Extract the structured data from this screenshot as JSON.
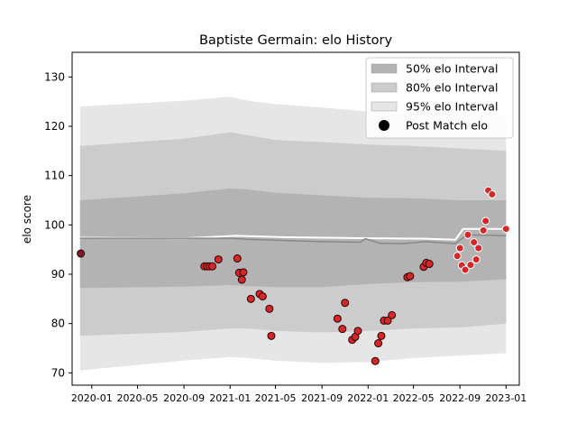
{
  "chart_data": {
    "type": "line",
    "title": "Baptiste Germain: elo History",
    "xlabel": "",
    "ylabel": "elo score",
    "xlim": [
      "2019-11-10",
      "2023-02-05"
    ],
    "ylim": [
      67.5,
      135
    ],
    "x_ticks": [
      "2020-01",
      "2020-05",
      "2020-09",
      "2021-01",
      "2021-05",
      "2021-09",
      "2022-01",
      "2022-05",
      "2022-09",
      "2023-01"
    ],
    "y_ticks": [
      70,
      80,
      90,
      100,
      110,
      120,
      130
    ],
    "grid": false,
    "legend_position": "top-right",
    "legend": [
      {
        "label": "50% elo Interval",
        "kind": "patch",
        "color": "#b3b3b3"
      },
      {
        "label": "80% elo Interval",
        "kind": "patch",
        "color": "#cccccc"
      },
      {
        "label": "95% elo Interval",
        "kind": "patch",
        "color": "#e6e6e6"
      },
      {
        "label": "Post Match elo",
        "kind": "marker",
        "color": "#000000"
      }
    ],
    "colors": {
      "band_50": "#b3b3b3",
      "band_80": "#cccccc",
      "band_95": "#e6e6e6",
      "median_line": "#888888",
      "mean_line": "#ffffff",
      "point_fill": "#d62728",
      "point_edge": "#2b0000",
      "future_point_edge": "#ffffff"
    },
    "bands": [
      {
        "date": "2019-12-01",
        "lo95": 70.5,
        "lo80": 77.5,
        "lo50": 87.2,
        "hi50": 105.0,
        "hi80": 116.0,
        "hi95": 124.0
      },
      {
        "date": "2020-09-01",
        "lo95": 72.5,
        "lo80": 78.3,
        "lo50": 87.5,
        "hi50": 106.4,
        "hi80": 117.5,
        "hi95": 125.2
      },
      {
        "date": "2021-01-01",
        "lo95": 73.2,
        "lo80": 79.0,
        "lo50": 87.8,
        "hi50": 107.4,
        "hi80": 118.8,
        "hi95": 126.0
      },
      {
        "date": "2021-02-15",
        "lo95": 73.0,
        "lo80": 79.0,
        "lo50": 87.6,
        "hi50": 107.2,
        "hi80": 118.2,
        "hi95": 125.2
      },
      {
        "date": "2021-05-01",
        "lo95": 72.5,
        "lo80": 78.5,
        "lo50": 87.4,
        "hi50": 106.5,
        "hi80": 117.2,
        "hi95": 124.5
      },
      {
        "date": "2021-09-01",
        "lo95": 72.0,
        "lo80": 78.2,
        "lo50": 87.4,
        "hi50": 106.0,
        "hi80": 116.8,
        "hi95": 123.8
      },
      {
        "date": "2022-01-01",
        "lo95": 72.2,
        "lo80": 78.5,
        "lo50": 88.0,
        "hi50": 105.5,
        "hi80": 116.3,
        "hi95": 123.0
      },
      {
        "date": "2022-05-01",
        "lo95": 73.0,
        "lo80": 79.0,
        "lo50": 88.4,
        "hi50": 105.4,
        "hi80": 116.0,
        "hi95": 122.4
      },
      {
        "date": "2022-09-01",
        "lo95": 73.5,
        "lo80": 79.2,
        "lo50": 88.5,
        "hi50": 105.0,
        "hi80": 115.5,
        "hi95": 122.0
      },
      {
        "date": "2023-01-01",
        "lo95": 74.0,
        "lo80": 80.0,
        "lo50": 89.0,
        "hi50": 105.0,
        "hi80": 115.0,
        "hi95": 122.0
      }
    ],
    "median_line": [
      {
        "date": "2019-12-01",
        "value": 97.3
      },
      {
        "date": "2021-01-01",
        "value": 97.3
      },
      {
        "date": "2021-02-15",
        "value": 97.1
      },
      {
        "date": "2021-09-01",
        "value": 96.6
      },
      {
        "date": "2021-12-10",
        "value": 96.5
      },
      {
        "date": "2021-12-25",
        "value": 97.2
      },
      {
        "date": "2022-02-01",
        "value": 96.3
      },
      {
        "date": "2022-04-01",
        "value": 96.2
      },
      {
        "date": "2022-06-01",
        "value": 96.6
      },
      {
        "date": "2022-08-20",
        "value": 96.2
      },
      {
        "date": "2022-09-20",
        "value": 98.0
      },
      {
        "date": "2023-01-01",
        "value": 97.8
      }
    ],
    "mean_line": [
      {
        "date": "2019-12-01",
        "value": 97.4
      },
      {
        "date": "2020-09-01",
        "value": 97.3
      },
      {
        "date": "2021-01-15",
        "value": 97.8
      },
      {
        "date": "2021-06-01",
        "value": 97.5
      },
      {
        "date": "2022-01-01",
        "value": 97.3
      },
      {
        "date": "2022-06-01",
        "value": 97.2
      },
      {
        "date": "2022-08-20",
        "value": 97.0
      },
      {
        "date": "2022-09-10",
        "value": 99.2
      },
      {
        "date": "2023-01-01",
        "value": 99.2
      }
    ],
    "series": [
      {
        "name": "Post Match elo",
        "points": [
          {
            "date": "2019-12-03",
            "value": 94.2
          },
          {
            "date": "2020-10-25",
            "value": 91.6
          },
          {
            "date": "2020-11-01",
            "value": 91.6
          },
          {
            "date": "2020-11-08",
            "value": 91.6
          },
          {
            "date": "2020-11-15",
            "value": 91.6
          },
          {
            "date": "2020-12-01",
            "value": 93.0
          },
          {
            "date": "2021-01-20",
            "value": 93.2
          },
          {
            "date": "2021-01-25",
            "value": 90.3
          },
          {
            "date": "2021-02-01",
            "value": 88.9
          },
          {
            "date": "2021-02-05",
            "value": 90.4
          },
          {
            "date": "2021-02-25",
            "value": 85.0
          },
          {
            "date": "2021-03-20",
            "value": 86.0
          },
          {
            "date": "2021-03-28",
            "value": 85.5
          },
          {
            "date": "2021-04-15",
            "value": 83.0
          },
          {
            "date": "2021-04-20",
            "value": 77.5
          },
          {
            "date": "2021-10-12",
            "value": 81.0
          },
          {
            "date": "2021-10-25",
            "value": 78.9
          },
          {
            "date": "2021-11-01",
            "value": 84.2
          },
          {
            "date": "2021-11-20",
            "value": 76.7
          },
          {
            "date": "2021-11-28",
            "value": 77.3
          },
          {
            "date": "2021-12-05",
            "value": 78.5
          },
          {
            "date": "2022-01-20",
            "value": 72.4
          },
          {
            "date": "2022-01-28",
            "value": 76.0
          },
          {
            "date": "2022-02-05",
            "value": 77.5
          },
          {
            "date": "2022-02-12",
            "value": 80.6
          },
          {
            "date": "2022-02-22",
            "value": 80.6
          },
          {
            "date": "2022-03-05",
            "value": 81.7
          },
          {
            "date": "2022-04-15",
            "value": 89.4
          },
          {
            "date": "2022-04-22",
            "value": 89.6
          },
          {
            "date": "2022-05-28",
            "value": 91.5
          },
          {
            "date": "2022-06-04",
            "value": 92.3
          },
          {
            "date": "2022-06-12",
            "value": 92.1
          }
        ]
      },
      {
        "name": "",
        "points": [
          {
            "date": "2022-08-25",
            "value": 93.7
          },
          {
            "date": "2022-09-01",
            "value": 95.3
          },
          {
            "date": "2022-09-06",
            "value": 91.8
          },
          {
            "date": "2022-09-15",
            "value": 90.9
          },
          {
            "date": "2022-09-22",
            "value": 98.0
          },
          {
            "date": "2022-09-29",
            "value": 91.9
          },
          {
            "date": "2022-10-08",
            "value": 96.5
          },
          {
            "date": "2022-10-14",
            "value": 93.0
          },
          {
            "date": "2022-10-20",
            "value": 95.3
          },
          {
            "date": "2022-11-02",
            "value": 98.9
          },
          {
            "date": "2022-11-08",
            "value": 100.8
          },
          {
            "date": "2022-11-15",
            "value": 107.0
          },
          {
            "date": "2022-11-25",
            "value": 106.2
          },
          {
            "date": "2023-01-01",
            "value": 99.2
          }
        ]
      }
    ]
  }
}
